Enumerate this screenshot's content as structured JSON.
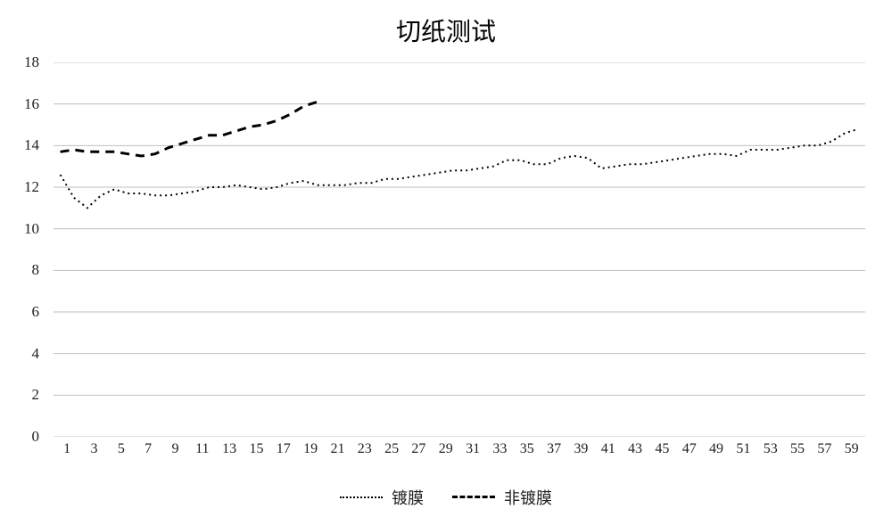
{
  "chart": {
    "type": "line",
    "title": "切纸测试",
    "title_fontsize": 28,
    "background_color": "#ffffff",
    "grid_color": "#bfbfbf",
    "grid_on_y": true,
    "grid_on_x": false,
    "line_color": "#000000",
    "axis_label_fontsize": 17,
    "ylim": [
      0,
      18
    ],
    "ytick_step": 2,
    "yticks": [
      0,
      2,
      4,
      6,
      8,
      10,
      12,
      14,
      16,
      18
    ],
    "xlim": [
      1,
      60
    ],
    "x_categories": [
      1,
      2,
      3,
      4,
      5,
      6,
      7,
      8,
      9,
      10,
      11,
      12,
      13,
      14,
      15,
      16,
      17,
      18,
      19,
      20,
      21,
      22,
      23,
      24,
      25,
      26,
      27,
      28,
      29,
      30,
      31,
      32,
      33,
      34,
      35,
      36,
      37,
      38,
      39,
      40,
      41,
      42,
      43,
      44,
      45,
      46,
      47,
      48,
      49,
      50,
      51,
      52,
      53,
      54,
      55,
      56,
      57,
      58,
      59,
      60
    ],
    "x_tick_labels": [
      1,
      3,
      5,
      7,
      9,
      11,
      13,
      15,
      17,
      19,
      21,
      23,
      25,
      27,
      29,
      31,
      33,
      35,
      37,
      39,
      41,
      43,
      45,
      47,
      49,
      51,
      53,
      55,
      57,
      59
    ],
    "series": [
      {
        "name": "镀膜",
        "color": "#000000",
        "line_width": 2,
        "dash": "dotted",
        "marker": "none",
        "values": [
          12.6,
          11.5,
          11.0,
          11.6,
          11.9,
          11.7,
          11.7,
          11.6,
          11.6,
          11.7,
          11.8,
          12.0,
          12.0,
          12.1,
          12.0,
          11.9,
          12.0,
          12.2,
          12.3,
          12.1,
          12.1,
          12.1,
          12.2,
          12.2,
          12.4,
          12.4,
          12.5,
          12.6,
          12.7,
          12.8,
          12.8,
          12.9,
          13.0,
          13.3,
          13.3,
          13.1,
          13.1,
          13.4,
          13.5,
          13.4,
          12.9,
          13.0,
          13.1,
          13.1,
          13.2,
          13.3,
          13.4,
          13.5,
          13.6,
          13.6,
          13.5,
          13.8,
          13.8,
          13.8,
          13.9,
          14.0,
          14.0,
          14.2,
          14.6,
          14.8
        ]
      },
      {
        "name": "非镀膜",
        "color": "#000000",
        "line_width": 3,
        "dash": "dashed",
        "marker": "none",
        "values": [
          13.7,
          13.8,
          13.7,
          13.7,
          13.7,
          13.6,
          13.5,
          13.6,
          13.9,
          14.1,
          14.3,
          14.5,
          14.5,
          14.7,
          14.9,
          15.0,
          15.2,
          15.5,
          15.9,
          16.1
        ]
      }
    ],
    "legend": {
      "position": "bottom",
      "fontsize": 18,
      "items": [
        "镀膜",
        "非镀膜"
      ]
    }
  }
}
